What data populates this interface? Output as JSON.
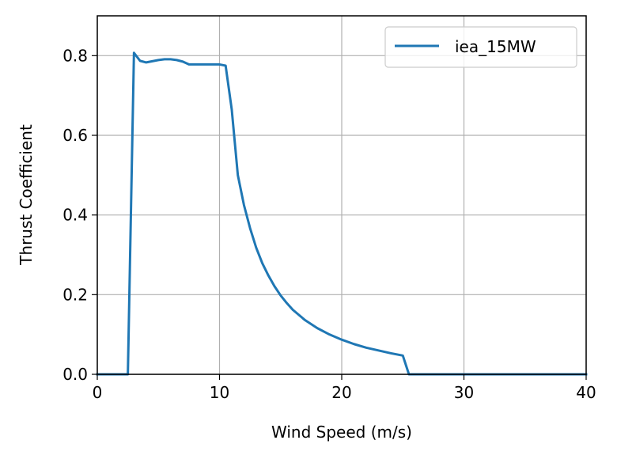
{
  "chart_data": {
    "type": "line",
    "xlabel": "Wind Speed (m/s)",
    "ylabel": "Thrust Coefficient",
    "xlim": [
      0,
      40
    ],
    "ylim": [
      0,
      0.9
    ],
    "xticks": [
      0,
      10,
      20,
      30,
      40
    ],
    "yticks": [
      0.0,
      0.2,
      0.4,
      0.6,
      0.8
    ],
    "xtick_labels": [
      "0",
      "10",
      "20",
      "30",
      "40"
    ],
    "ytick_labels": [
      "0.0",
      "0.2",
      "0.4",
      "0.6",
      "0.8"
    ],
    "grid": true,
    "legend_position": "top-right",
    "series": [
      {
        "name": "iea_15MW",
        "color": "#1f77b4",
        "x": [
          0,
          2.5,
          3.0,
          3.5,
          4.0,
          4.5,
          5.0,
          5.5,
          6.0,
          6.5,
          7.0,
          7.5,
          8.0,
          9.0,
          10.0,
          10.5,
          11.0,
          11.5,
          12.0,
          12.5,
          13.0,
          13.5,
          14.0,
          14.5,
          15.0,
          15.5,
          16.0,
          17.0,
          18.0,
          19.0,
          20.0,
          21.0,
          22.0,
          23.0,
          24.0,
          25.0,
          25.5,
          40.0
        ],
        "y": [
          0.0,
          0.0,
          0.807,
          0.787,
          0.783,
          0.786,
          0.789,
          0.791,
          0.791,
          0.789,
          0.785,
          0.778,
          0.778,
          0.778,
          0.778,
          0.775,
          0.665,
          0.5,
          0.425,
          0.367,
          0.318,
          0.279,
          0.248,
          0.221,
          0.198,
          0.179,
          0.162,
          0.136,
          0.116,
          0.1,
          0.087,
          0.076,
          0.067,
          0.06,
          0.053,
          0.047,
          0.0,
          0.0
        ]
      }
    ]
  }
}
